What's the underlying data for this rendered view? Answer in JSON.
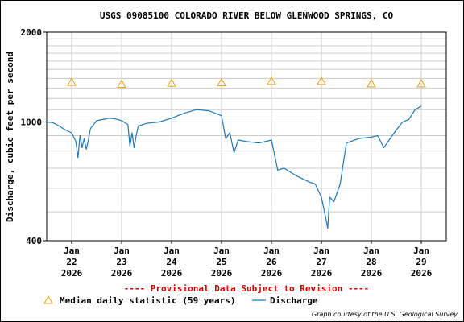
{
  "chart_data": {
    "type": "line",
    "title": "USGS 09085100 COLORADO RIVER BELOW GLENWOOD SPRINGS, CO",
    "ylabel": "Discharge, cubic feet per second",
    "y_scale": "log",
    "ylim": [
      400,
      2000
    ],
    "y_tick_labels": [
      "2000",
      "1000",
      "400"
    ],
    "y_tick_values": [
      2000,
      1000,
      400
    ],
    "x_range": [
      "2026-01-21T12:00",
      "2026-01-29T12:00"
    ],
    "x_ticks": [
      {
        "date": "2026-01-22",
        "line1": "Jan",
        "line2": "22",
        "line3": "2026"
      },
      {
        "date": "2026-01-23",
        "line1": "Jan",
        "line2": "23",
        "line3": "2026"
      },
      {
        "date": "2026-01-24",
        "line1": "Jan",
        "line2": "24",
        "line3": "2026"
      },
      {
        "date": "2026-01-25",
        "line1": "Jan",
        "line2": "25",
        "line3": "2026"
      },
      {
        "date": "2026-01-26",
        "line1": "Jan",
        "line2": "26",
        "line3": "2026"
      },
      {
        "date": "2026-01-27",
        "line1": "Jan",
        "line2": "27",
        "line3": "2026"
      },
      {
        "date": "2026-01-28",
        "line1": "Jan",
        "line2": "28",
        "line3": "2026"
      },
      {
        "date": "2026-01-29",
        "line1": "Jan",
        "line2": "29",
        "line3": "2026"
      }
    ],
    "grid": true,
    "series": [
      {
        "name": "Median daily statistic (59 years)",
        "marker": "triangle",
        "color": "#e8a317",
        "x": [
          "2026-01-22",
          "2026-01-23",
          "2026-01-24",
          "2026-01-25",
          "2026-01-26",
          "2026-01-27",
          "2026-01-28",
          "2026-01-29"
        ],
        "y": [
          1360,
          1340,
          1350,
          1355,
          1370,
          1370,
          1345,
          1345
        ]
      },
      {
        "name": "Discharge",
        "color": "#1f77b4",
        "x": [
          "2026-01-21T12:00",
          "2026-01-21T15:00",
          "2026-01-21T18:00",
          "2026-01-21T21:00",
          "2026-01-22T00:00",
          "2026-01-22T02:00",
          "2026-01-22T03:00",
          "2026-01-22T04:00",
          "2026-01-22T05:00",
          "2026-01-22T06:00",
          "2026-01-22T07:00",
          "2026-01-22T08:00",
          "2026-01-22T09:00",
          "2026-01-22T12:00",
          "2026-01-22T15:00",
          "2026-01-22T18:00",
          "2026-01-22T21:00",
          "2026-01-23T00:00",
          "2026-01-23T03:00",
          "2026-01-23T04:00",
          "2026-01-23T05:00",
          "2026-01-23T06:00",
          "2026-01-23T07:00",
          "2026-01-23T08:00",
          "2026-01-23T12:00",
          "2026-01-23T18:00",
          "2026-01-24T00:00",
          "2026-01-24T06:00",
          "2026-01-24T12:00",
          "2026-01-24T18:00",
          "2026-01-25T00:00",
          "2026-01-25T02:00",
          "2026-01-25T04:00",
          "2026-01-25T06:00",
          "2026-01-25T08:00",
          "2026-01-25T12:00",
          "2026-01-25T18:00",
          "2026-01-26T00:00",
          "2026-01-26T03:00",
          "2026-01-26T06:00",
          "2026-01-26T12:00",
          "2026-01-26T18:00",
          "2026-01-26T21:00",
          "2026-01-27T00:00",
          "2026-01-27T02:00",
          "2026-01-27T03:00",
          "2026-01-27T04:00",
          "2026-01-27T06:00",
          "2026-01-27T09:00",
          "2026-01-27T12:00",
          "2026-01-27T18:00",
          "2026-01-28T00:00",
          "2026-01-28T03:00",
          "2026-01-28T06:00",
          "2026-01-28T09:00",
          "2026-01-28T12:00",
          "2026-01-28T15:00",
          "2026-01-28T18:00",
          "2026-01-28T21:00",
          "2026-01-29T00:00"
        ],
        "y": [
          1000,
          995,
          970,
          940,
          920,
          860,
          760,
          900,
          820,
          880,
          810,
          870,
          950,
          1010,
          1020,
          1030,
          1025,
          1010,
          980,
          830,
          920,
          820,
          900,
          970,
          990,
          1000,
          1030,
          1070,
          1100,
          1090,
          1050,
          880,
          920,
          790,
          870,
          860,
          850,
          870,
          690,
          700,
          660,
          630,
          620,
          560,
          480,
          440,
          560,
          540,
          620,
          850,
          880,
          890,
          900,
          820,
          880,
          940,
          1000,
          1020,
          1100,
          1130
        ]
      }
    ]
  },
  "caption": {
    "provisional": "---- Provisional Data Subject to Revision ----",
    "credit": "Graph courtesy of the U.S. Geological Survey"
  },
  "legend": {
    "median_label": "Median daily statistic (59 years)",
    "discharge_label": "Discharge"
  },
  "colors": {
    "median": "#e8a317",
    "discharge": "#1f77b4",
    "provisional": "#cc0000",
    "grid": "#cccccc"
  }
}
